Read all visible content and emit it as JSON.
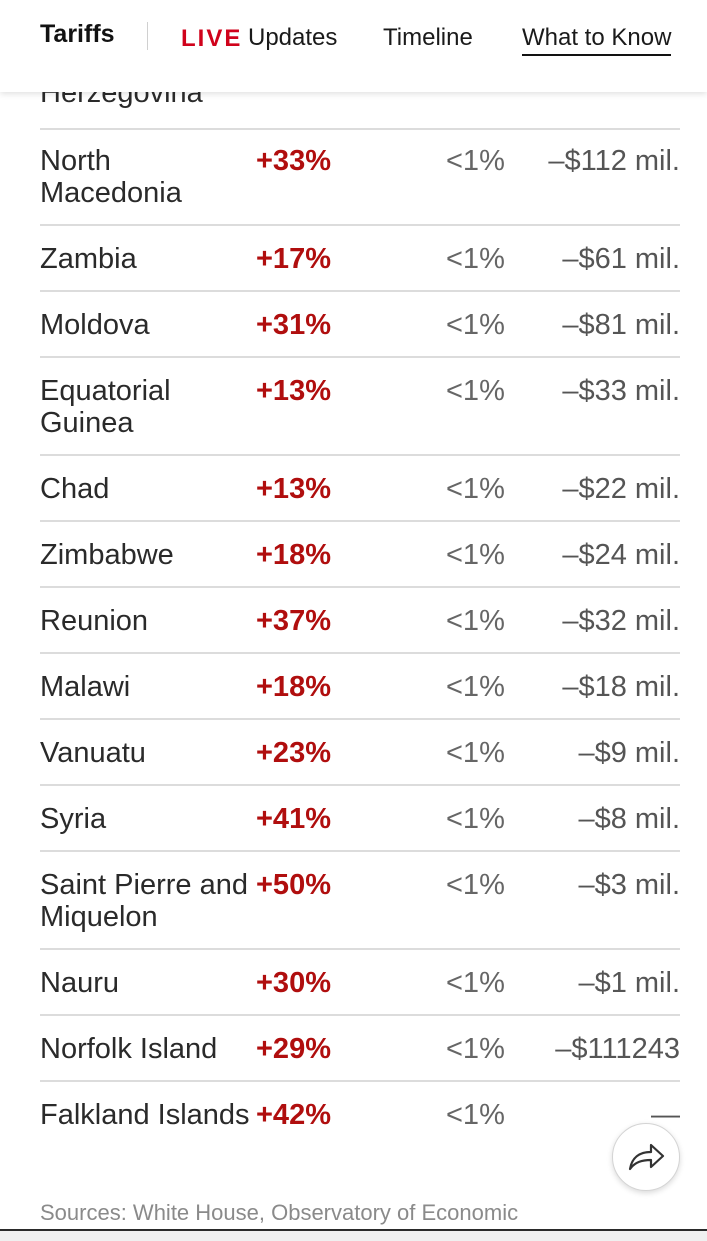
{
  "nav": {
    "brand": "Tariffs",
    "live": "LIVE",
    "updates": "Updates",
    "timeline": "Timeline",
    "what_to_know": "What to Know"
  },
  "partial_row": {
    "country": "Herzegovina"
  },
  "rows": [
    {
      "country": "North Macedonia",
      "change": "+33%",
      "share": "<1%",
      "impact": "–$112 mil."
    },
    {
      "country": "Zambia",
      "change": "+17%",
      "share": "<1%",
      "impact": "–$61 mil."
    },
    {
      "country": "Moldova",
      "change": "+31%",
      "share": "<1%",
      "impact": "–$81 mil."
    },
    {
      "country": "Equatorial Guinea",
      "change": "+13%",
      "share": "<1%",
      "impact": "–$33 mil."
    },
    {
      "country": "Chad",
      "change": "+13%",
      "share": "<1%",
      "impact": "–$22 mil."
    },
    {
      "country": "Zimbabwe",
      "change": "+18%",
      "share": "<1%",
      "impact": "–$24 mil."
    },
    {
      "country": "Reunion",
      "change": "+37%",
      "share": "<1%",
      "impact": "–$32 mil."
    },
    {
      "country": "Malawi",
      "change": "+18%",
      "share": "<1%",
      "impact": "–$18 mil."
    },
    {
      "country": "Vanuatu",
      "change": "+23%",
      "share": "<1%",
      "impact": "–$9 mil."
    },
    {
      "country": "Syria",
      "change": "+41%",
      "share": "<1%",
      "impact": "–$8 mil."
    },
    {
      "country": "Saint Pierre and Miquelon",
      "change": "+50%",
      "share": "<1%",
      "impact": "–$3 mil."
    },
    {
      "country": "Nauru",
      "change": "+30%",
      "share": "<1%",
      "impact": "–$1 mil."
    },
    {
      "country": "Norfolk Island",
      "change": "+29%",
      "share": "<1%",
      "impact": "–$111243"
    },
    {
      "country": "Falkland Islands",
      "change": "+42%",
      "share": "<1%",
      "impact": "—"
    }
  ],
  "source": "Sources: White House, Observatory of Economic",
  "icons": {
    "share": "share-arrow-icon"
  }
}
